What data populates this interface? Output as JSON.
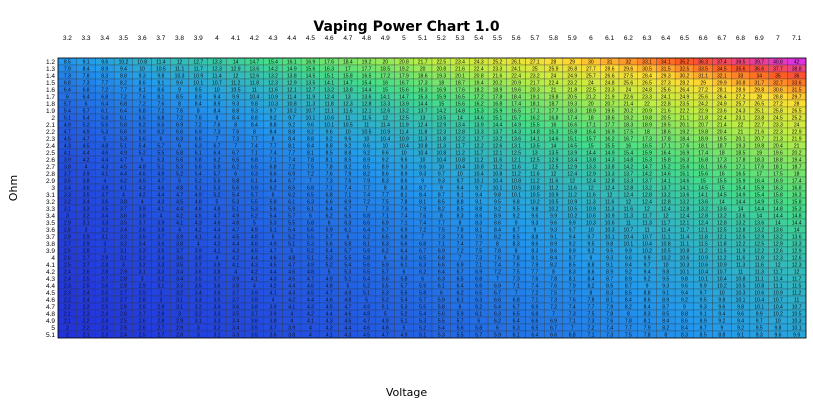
{
  "chart_data": {
    "type": "heatmap",
    "title": "Vaping Power Chart 1.0",
    "xlabel": "Voltage",
    "ylabel": "Ohm",
    "x_label_position": "top",
    "x": [
      "3.2",
      "3.3",
      "3.4",
      "3.5",
      "3.6",
      "3.7",
      "3.8",
      "3.9",
      "4",
      "4.1",
      "4.2",
      "4.3",
      "4.4",
      "4.5",
      "4.6",
      "4.7",
      "4.8",
      "4.9",
      "5",
      "5.1",
      "5.2",
      "5.3",
      "5.4",
      "5.5",
      "5.6",
      "5.7",
      "5.8",
      "5.9",
      "6",
      "6.1",
      "6.2",
      "6.3",
      "6.4",
      "6.5",
      "6.6",
      "6.7",
      "6.8",
      "6.9",
      "7",
      "7.1"
    ],
    "y": [
      "1.2",
      "1.3",
      "1.4",
      "1.5",
      "1.6",
      "1.7",
      "1.8",
      "1.9",
      "2",
      "2.1",
      "2.2",
      "2.3",
      "2.4",
      "2.5",
      "2.6",
      "2.7",
      "2.8",
      "2.9",
      "3",
      "3.1",
      "3.2",
      "3.3",
      "3.4",
      "3.5",
      "3.6",
      "3.7",
      "3.8",
      "3.9",
      "4",
      "4.1",
      "4.2",
      "4.3",
      "4.4",
      "4.5",
      "4.6",
      "4.7",
      "4.8",
      "4.9",
      "5",
      "5.1"
    ],
    "cell_value": "watts = voltage^2 / ohm",
    "colorscale": [
      "#2233dd",
      "#2299ee",
      "#44dd88",
      "#bbee44",
      "#ffdd33",
      "#ff5522",
      "#dd33dd"
    ],
    "value_range": [
      2,
      42
    ],
    "grid": true
  }
}
